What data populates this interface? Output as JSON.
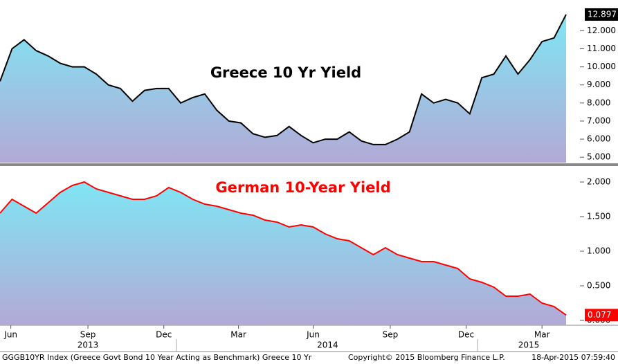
{
  "chart_data": [
    {
      "type": "area",
      "title": "Greece 10 Yr Yield",
      "color": "#000000",
      "title_color": "#000000",
      "values": [
        9.2,
        11.0,
        11.5,
        10.9,
        10.6,
        10.2,
        10.0,
        10.0,
        9.6,
        9.0,
        8.8,
        8.1,
        8.7,
        8.8,
        8.8,
        8.0,
        8.3,
        8.5,
        7.6,
        7.0,
        6.9,
        6.3,
        6.1,
        6.2,
        6.7,
        6.2,
        5.8,
        6.0,
        6.0,
        6.4,
        5.9,
        5.7,
        5.7,
        6.0,
        6.4,
        8.5,
        8.0,
        8.2,
        8.0,
        7.4,
        9.4,
        9.6,
        10.6,
        9.6,
        10.4,
        11.4,
        11.6,
        12.897
      ],
      "xlim": [
        0,
        47
      ],
      "ylim": [
        4.7,
        13.7
      ],
      "yticks": [
        {
          "value": 5,
          "label": "5.000"
        },
        {
          "value": 6,
          "label": "6.000"
        },
        {
          "value": 7,
          "label": "7.000"
        },
        {
          "value": 8,
          "label": "8.000"
        },
        {
          "value": 9,
          "label": "9.000"
        },
        {
          "value": 10,
          "label": "10.000"
        },
        {
          "value": 11,
          "label": "11.000"
        },
        {
          "value": 12,
          "label": "12.000"
        }
      ]
    },
    {
      "type": "area",
      "title": "German 10-Year Yield",
      "color": "#ff0000",
      "title_color": "#ff0000",
      "values": [
        1.55,
        1.75,
        1.65,
        1.55,
        1.7,
        1.85,
        1.95,
        2.0,
        1.9,
        1.85,
        1.8,
        1.75,
        1.75,
        1.8,
        1.92,
        1.85,
        1.75,
        1.68,
        1.65,
        1.6,
        1.55,
        1.52,
        1.45,
        1.42,
        1.35,
        1.38,
        1.35,
        1.25,
        1.18,
        1.15,
        1.05,
        0.95,
        1.05,
        0.95,
        0.9,
        0.85,
        0.85,
        0.8,
        0.75,
        0.6,
        0.55,
        0.48,
        0.35,
        0.35,
        0.38,
        0.25,
        0.2,
        0.077
      ],
      "xlim": [
        0,
        47
      ],
      "ylim": [
        -0.07,
        2.23
      ],
      "yticks": [
        {
          "value": 0,
          "label": "0.000"
        },
        {
          "value": 0.5,
          "label": "0.500"
        },
        {
          "value": 1,
          "label": "1.000"
        },
        {
          "value": 1.5,
          "label": "1.500"
        },
        {
          "value": 2,
          "label": "2.000"
        }
      ]
    }
  ],
  "x_axis": {
    "ticks": [
      {
        "value": 0.9,
        "label": "Jun"
      },
      {
        "value": 7.3,
        "label": "Sep"
      },
      {
        "value": 13.6,
        "label": "Dec"
      },
      {
        "value": 19.8,
        "label": "Mar"
      },
      {
        "value": 26.0,
        "label": "Jun"
      },
      {
        "value": 32.4,
        "label": "Sep"
      },
      {
        "value": 38.7,
        "label": "Dec"
      },
      {
        "value": 45.0,
        "label": "Mar"
      }
    ],
    "years": [
      {
        "value": 7.3,
        "label": "2013"
      },
      {
        "value": 27.2,
        "label": "2014"
      },
      {
        "value": 43.9,
        "label": "2015"
      }
    ]
  },
  "footer": {
    "left": "GGGB10YR Index (Greece Govt Bond 10 Year Acting as Benchmark) Greece 10 Yr",
    "copyright": "Copyright© 2015 Bloomberg Finance L.P.",
    "timestamp": "18-Apr-2015 07:59:40"
  }
}
